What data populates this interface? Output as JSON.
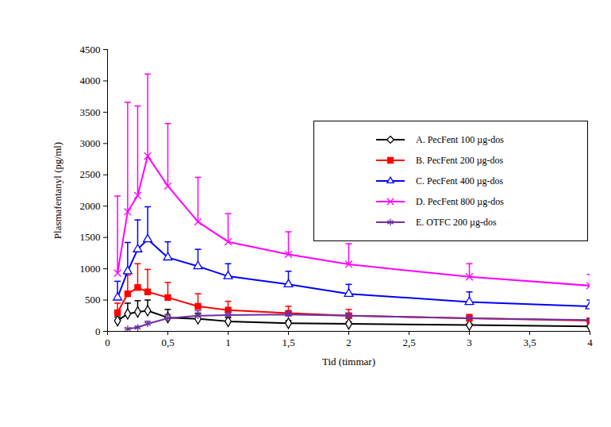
{
  "chart_data": {
    "type": "line",
    "x_label": "Tid (timmar)",
    "y_label": "Plasmafentanyl (pg/ml)",
    "x": [
      0.083,
      0.167,
      0.25,
      0.333,
      0.5,
      0.75,
      1,
      1.5,
      2,
      3,
      4
    ],
    "xlim": [
      0,
      4
    ],
    "xticks": [
      0,
      {
        "value": 0.5,
        "label": "0,5"
      },
      1,
      {
        "value": 1.5,
        "label": "1,5"
      },
      2,
      {
        "value": 2.5,
        "label": "2,5"
      },
      3,
      {
        "value": 3.5,
        "label": "3,5"
      },
      4
    ],
    "ylim": [
      0,
      4500
    ],
    "yticks": [
      0,
      500,
      1000,
      1500,
      2000,
      2500,
      3000,
      3500,
      4000,
      4500
    ],
    "grid": false,
    "legend": "upper right",
    "series": [
      {
        "name": "A. PecFent 100 µg-dos",
        "color": "#000000",
        "marker": "diamond-open",
        "values": [
          170,
          280,
          310,
          330,
          220,
          200,
          160,
          130,
          120,
          100,
          80
        ],
        "errors": [
          60,
          170,
          180,
          170,
          130,
          90,
          60,
          40,
          30,
          20,
          15
        ]
      },
      {
        "name": "B. PecFent 200 µg-dos",
        "color": "#ff0000",
        "marker": "square",
        "values": [
          300,
          600,
          700,
          630,
          540,
          400,
          340,
          290,
          250,
          210,
          170
        ],
        "errors": [
          150,
          300,
          380,
          360,
          240,
          200,
          140,
          110,
          100,
          60,
          40
        ]
      },
      {
        "name": "C. PecFent 400 µg-dos",
        "color": "#0000ff",
        "marker": "triangle-open",
        "values": [
          540,
          960,
          1310,
          1470,
          1180,
          1040,
          880,
          750,
          600,
          470,
          400
        ],
        "errors": [
          260,
          460,
          470,
          520,
          250,
          270,
          200,
          210,
          150,
          160,
          100
        ]
      },
      {
        "name": "D. PecFent 800 µg-dos",
        "color": "#ff00ff",
        "marker": "x",
        "values": [
          930,
          1910,
          2170,
          2800,
          2320,
          1750,
          1430,
          1230,
          1070,
          870,
          730
        ],
        "errors": [
          1230,
          1750,
          1430,
          1310,
          1000,
          710,
          450,
          360,
          330,
          210,
          180
        ]
      },
      {
        "name": "E. OTFC 200 µg-dos",
        "color": "#7030a0",
        "marker": "asterisk",
        "values": [
          null,
          40,
          60,
          120,
          210,
          250,
          260,
          270,
          250,
          210,
          180
        ],
        "errors": [
          null,
          10,
          20,
          40,
          60,
          80,
          50,
          40,
          30,
          20,
          20
        ]
      }
    ]
  }
}
